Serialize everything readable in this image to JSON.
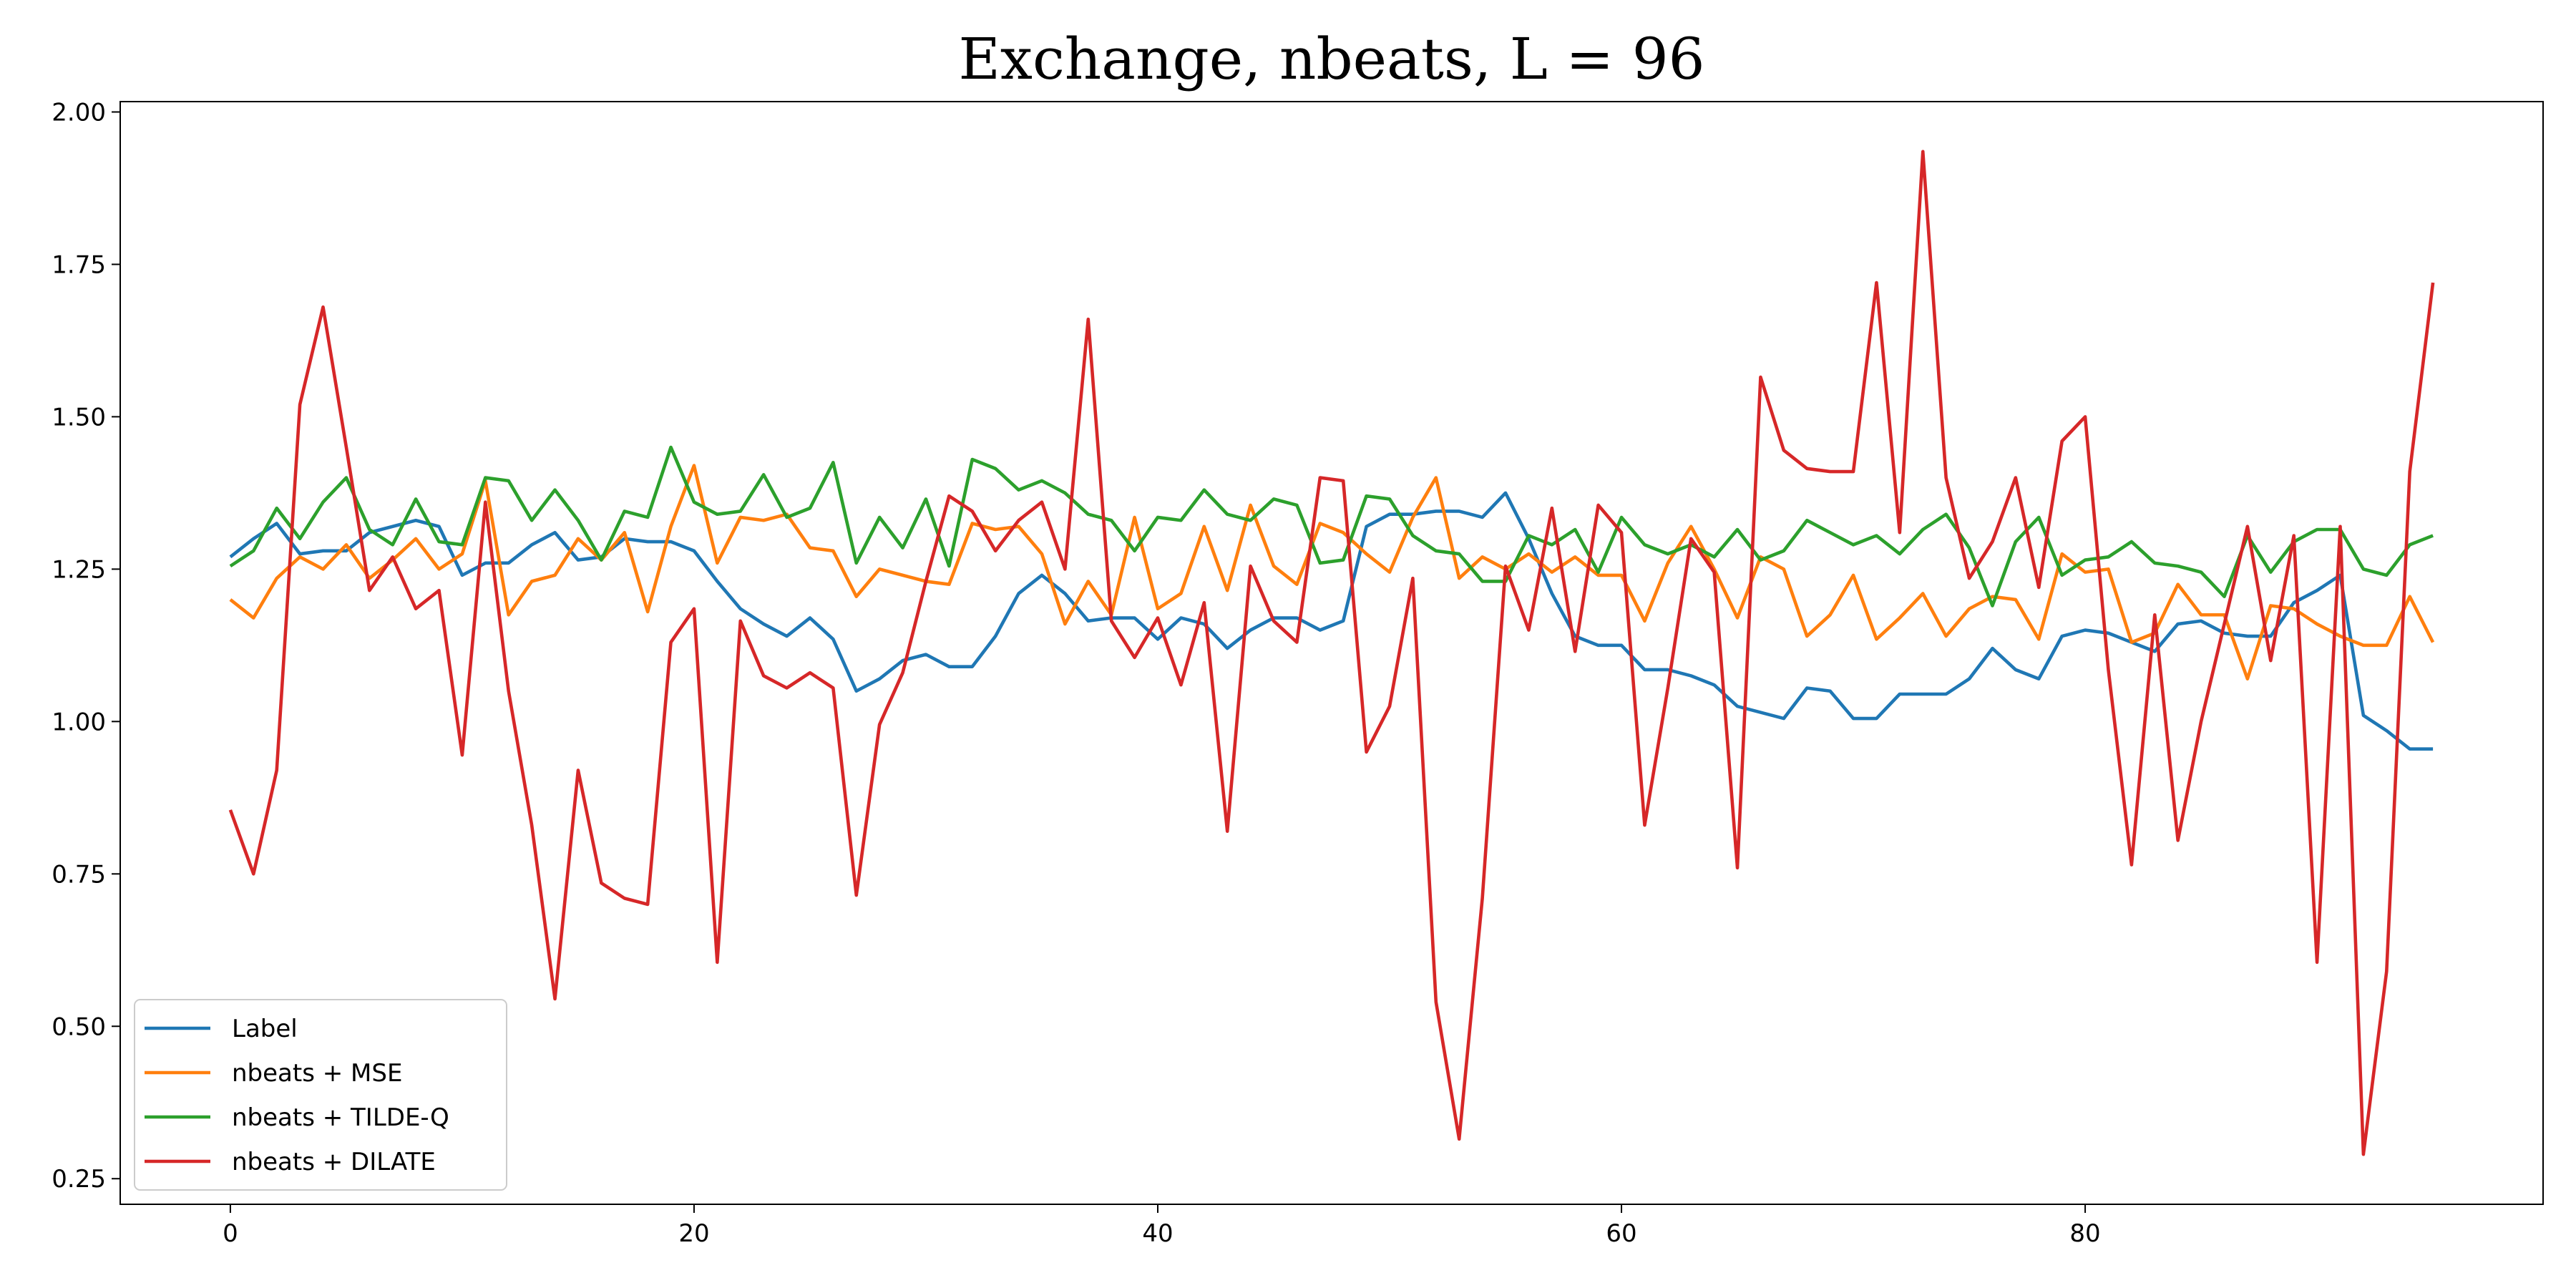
{
  "chart_data": {
    "type": "line",
    "title": "Exchange, nbeats, L = 96",
    "x": [
      0,
      1,
      2,
      3,
      4,
      5,
      6,
      7,
      8,
      9,
      10,
      11,
      12,
      13,
      14,
      15,
      16,
      17,
      18,
      19,
      20,
      21,
      22,
      23,
      24,
      25,
      26,
      27,
      28,
      29,
      30,
      31,
      32,
      33,
      34,
      35,
      36,
      37,
      38,
      39,
      40,
      41,
      42,
      43,
      44,
      45,
      46,
      47,
      48,
      49,
      50,
      51,
      52,
      53,
      54,
      55,
      56,
      57,
      58,
      59,
      60,
      61,
      62,
      63,
      64,
      65,
      66,
      67,
      68,
      69,
      70,
      71,
      72,
      73,
      74,
      75,
      76,
      77,
      78,
      79,
      80,
      81,
      82,
      83,
      84,
      85,
      86,
      87,
      88,
      89,
      90,
      91,
      92,
      93,
      94,
      95
    ],
    "series": [
      {
        "name": "Label",
        "color": "#1f77b4",
        "values": [
          1.27,
          1.3,
          1.325,
          1.275,
          1.28,
          1.28,
          1.31,
          1.32,
          1.33,
          1.32,
          1.24,
          1.26,
          1.26,
          1.29,
          1.31,
          1.265,
          1.27,
          1.3,
          1.295,
          1.295,
          1.28,
          1.23,
          1.185,
          1.16,
          1.14,
          1.17,
          1.135,
          1.05,
          1.07,
          1.1,
          1.11,
          1.09,
          1.09,
          1.14,
          1.21,
          1.24,
          1.21,
          1.165,
          1.17,
          1.17,
          1.135,
          1.17,
          1.16,
          1.12,
          1.15,
          1.17,
          1.17,
          1.15,
          1.165,
          1.32,
          1.34,
          1.34,
          1.345,
          1.345,
          1.335,
          1.375,
          1.3,
          1.21,
          1.14,
          1.125,
          1.125,
          1.085,
          1.085,
          1.075,
          1.06,
          1.025,
          1.015,
          1.005,
          1.055,
          1.05,
          1.005,
          1.005,
          1.045,
          1.045,
          1.045,
          1.07,
          1.12,
          1.085,
          1.07,
          1.14,
          1.15,
          1.145,
          1.13,
          1.115,
          1.16,
          1.165,
          1.145,
          1.14,
          1.14,
          1.195,
          1.215,
          1.24,
          1.01,
          0.985,
          0.955,
          0.955
        ]
      },
      {
        "name": "nbeats + MSE",
        "color": "#ff7f0e",
        "values": [
          1.2,
          1.17,
          1.235,
          1.27,
          1.25,
          1.29,
          1.235,
          1.265,
          1.3,
          1.25,
          1.275,
          1.395,
          1.175,
          1.23,
          1.24,
          1.3,
          1.265,
          1.31,
          1.18,
          1.32,
          1.42,
          1.26,
          1.335,
          1.33,
          1.34,
          1.285,
          1.28,
          1.205,
          1.25,
          1.24,
          1.23,
          1.225,
          1.325,
          1.315,
          1.32,
          1.275,
          1.16,
          1.23,
          1.175,
          1.335,
          1.185,
          1.21,
          1.32,
          1.215,
          1.355,
          1.255,
          1.225,
          1.325,
          1.31,
          1.275,
          1.245,
          1.335,
          1.4,
          1.235,
          1.27,
          1.25,
          1.275,
          1.245,
          1.27,
          1.24,
          1.24,
          1.165,
          1.26,
          1.32,
          1.25,
          1.17,
          1.27,
          1.25,
          1.14,
          1.175,
          1.24,
          1.135,
          1.17,
          1.21,
          1.14,
          1.185,
          1.205,
          1.2,
          1.135,
          1.275,
          1.245,
          1.25,
          1.13,
          1.145,
          1.225,
          1.175,
          1.175,
          1.07,
          1.19,
          1.185,
          1.16,
          1.14,
          1.125,
          1.125,
          1.205,
          1.13
        ]
      },
      {
        "name": "nbeats + TILDE-Q",
        "color": "#2ca02c",
        "values": [
          1.255,
          1.28,
          1.35,
          1.3,
          1.36,
          1.4,
          1.315,
          1.29,
          1.365,
          1.295,
          1.29,
          1.4,
          1.395,
          1.33,
          1.38,
          1.33,
          1.265,
          1.345,
          1.335,
          1.45,
          1.36,
          1.34,
          1.345,
          1.405,
          1.335,
          1.35,
          1.425,
          1.26,
          1.335,
          1.285,
          1.365,
          1.255,
          1.43,
          1.415,
          1.38,
          1.395,
          1.375,
          1.34,
          1.33,
          1.28,
          1.335,
          1.33,
          1.38,
          1.34,
          1.33,
          1.365,
          1.355,
          1.26,
          1.265,
          1.37,
          1.365,
          1.305,
          1.28,
          1.275,
          1.23,
          1.23,
          1.305,
          1.29,
          1.315,
          1.245,
          1.335,
          1.29,
          1.275,
          1.29,
          1.27,
          1.315,
          1.265,
          1.28,
          1.33,
          1.31,
          1.29,
          1.305,
          1.275,
          1.315,
          1.34,
          1.285,
          1.19,
          1.295,
          1.335,
          1.24,
          1.265,
          1.27,
          1.295,
          1.26,
          1.255,
          1.245,
          1.205,
          1.305,
          1.245,
          1.295,
          1.315,
          1.315,
          1.25,
          1.24,
          1.29,
          1.305
        ]
      },
      {
        "name": "nbeats + DILATE",
        "color": "#d62728",
        "values": [
          0.855,
          0.75,
          0.92,
          1.52,
          1.68,
          1.45,
          1.215,
          1.27,
          1.185,
          1.215,
          0.945,
          1.36,
          1.05,
          0.83,
          0.545,
          0.92,
          0.735,
          0.71,
          0.7,
          1.13,
          1.185,
          0.605,
          1.165,
          1.075,
          1.055,
          1.08,
          1.055,
          0.715,
          0.995,
          1.08,
          1.23,
          1.37,
          1.345,
          1.28,
          1.33,
          1.36,
          1.25,
          1.66,
          1.165,
          1.105,
          1.17,
          1.06,
          1.195,
          0.82,
          1.255,
          1.165,
          1.13,
          1.4,
          1.395,
          0.95,
          1.025,
          1.235,
          0.54,
          0.315,
          0.71,
          1.255,
          1.15,
          1.35,
          1.115,
          1.355,
          1.31,
          0.83,
          1.055,
          1.3,
          1.245,
          0.76,
          1.565,
          1.445,
          1.415,
          1.41,
          1.41,
          1.72,
          1.31,
          1.935,
          1.4,
          1.235,
          1.295,
          1.4,
          1.22,
          1.46,
          1.5,
          1.085,
          0.765,
          1.175,
          0.805,
          1.0,
          1.16,
          1.32,
          1.1,
          1.305,
          0.605,
          1.32,
          0.29,
          0.59,
          1.41,
          1.72
        ]
      }
    ],
    "xlim": [
      -4.75,
      99.75
    ],
    "ylim": [
      0.208,
      2.017
    ],
    "xticks": [
      0,
      20,
      40,
      60,
      80
    ],
    "yticks": [
      0.25,
      {
        "value": 0.5,
        "label": "0.50"
      },
      0.75,
      {
        "value": 1.0,
        "label": "1.00"
      },
      1.25,
      {
        "value": 1.5,
        "label": "1.50"
      },
      1.75,
      {
        "value": 2.0,
        "label": "2.00"
      }
    ],
    "legend": "lower left"
  }
}
